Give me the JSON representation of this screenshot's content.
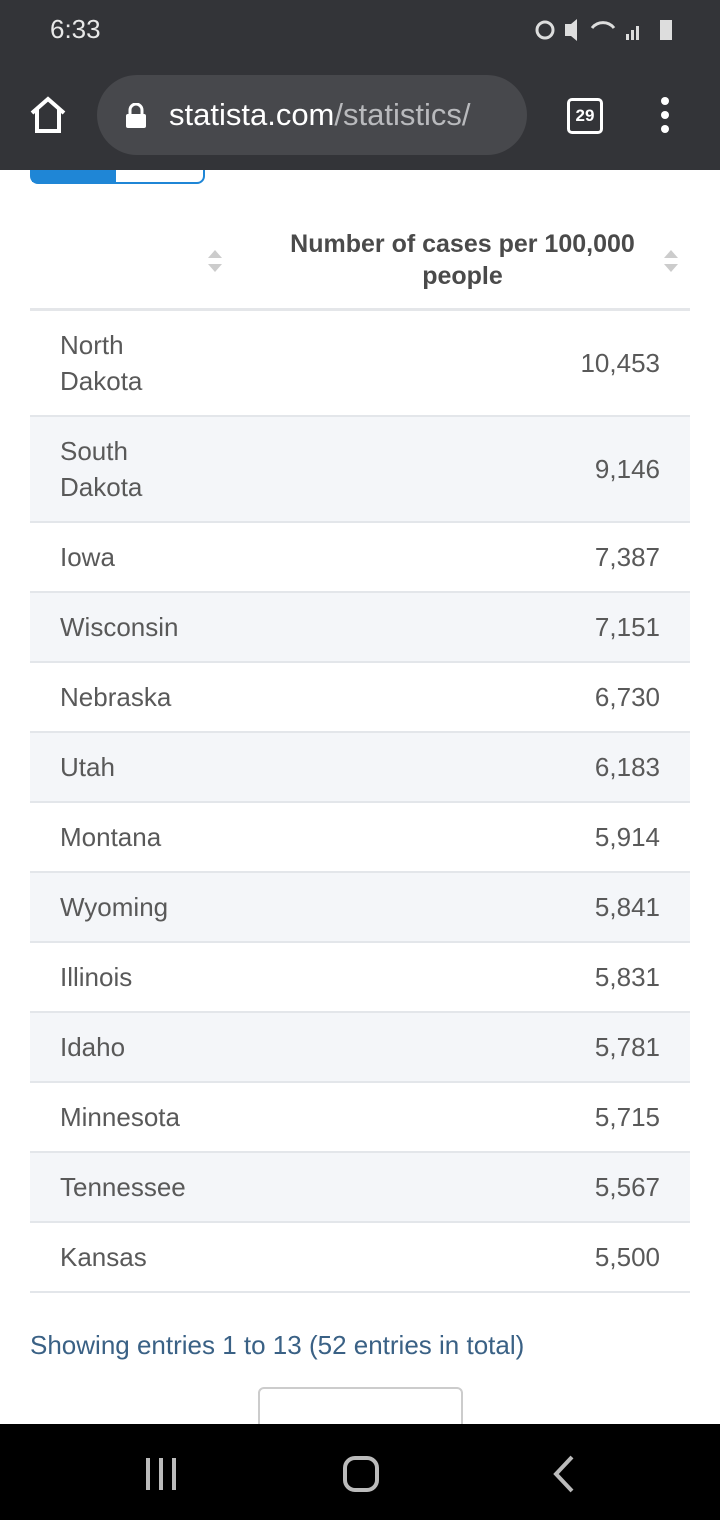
{
  "status_bar": {
    "time": "6:33"
  },
  "browser": {
    "url_host": "statista.com",
    "url_path": "/statistics/",
    "tab_count": "29"
  },
  "table": {
    "columns": [
      "Number of cases per 100,000 people"
    ],
    "rows": [
      [
        "North Dakota",
        "10,453"
      ],
      [
        "South Dakota",
        "9,146"
      ],
      [
        "Iowa",
        "7,387"
      ],
      [
        "Wisconsin",
        "7,151"
      ],
      [
        "Nebraska",
        "6,730"
      ],
      [
        "Utah",
        "6,183"
      ],
      [
        "Montana",
        "5,914"
      ],
      [
        "Wyoming",
        "5,841"
      ],
      [
        "Illinois",
        "5,831"
      ],
      [
        "Idaho",
        "5,781"
      ],
      [
        "Minnesota",
        "5,715"
      ],
      [
        "Tennessee",
        "5,567"
      ],
      [
        "Kansas",
        "5,500"
      ]
    ],
    "footer": "Showing entries 1 to 13 (52 entries in total)"
  }
}
